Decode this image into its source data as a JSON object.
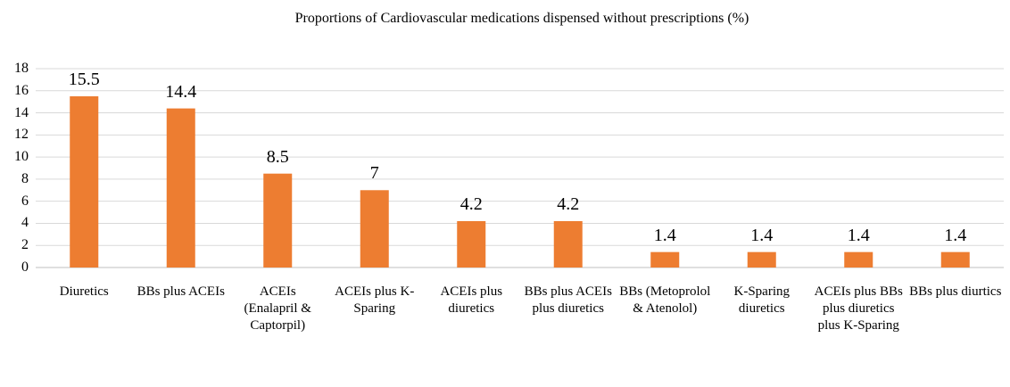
{
  "chart_data": {
    "type": "bar",
    "title": "Proportions of Cardiovascular  medications  dispensed without prescriptions (%)",
    "categories": [
      "Diuretics",
      "BBs plus ACEIs",
      "ACEIs (Enalapril & Captorpil)",
      "ACEIs plus K-Sparing",
      "ACEIs plus diuretics",
      "BBs plus ACEIs plus diuretics",
      "BBs (Metoprolol & Atenolol)",
      "K-Sparing diuretics",
      "ACEIs plus BBs plus diuretics plus K-Sparing",
      "BBs plus diurtics"
    ],
    "values": [
      15.5,
      14.4,
      8.5,
      7,
      4.2,
      4.2,
      1.4,
      1.4,
      1.4,
      1.4
    ],
    "color": "#ed7d31",
    "ylim": [
      0,
      18
    ],
    "yticks": [
      0,
      2,
      4,
      6,
      8,
      10,
      12,
      14,
      16,
      18
    ],
    "grid": true
  }
}
